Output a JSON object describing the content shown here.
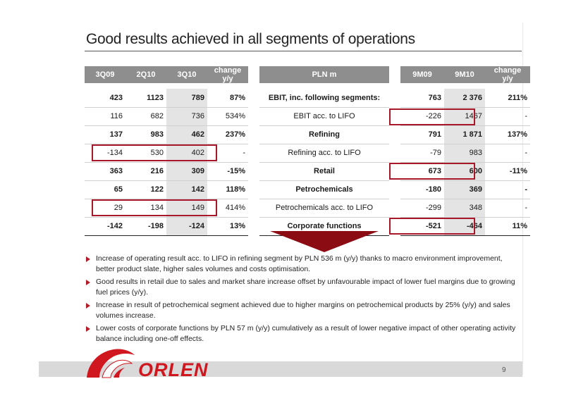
{
  "title": "Good results achieved in all segments of operations",
  "table": {
    "headers": {
      "left": [
        "3Q09",
        "2Q10",
        "3Q10",
        "change y/y"
      ],
      "middle": "PLN m",
      "right": [
        "9M09",
        "9M10",
        "change y/y"
      ]
    },
    "rows": [
      {
        "bold": true,
        "left": [
          "423",
          "1123",
          "789",
          "87%"
        ],
        "label": "EBIT, inc. following segments:",
        "right": [
          "763",
          "2 376",
          "211%"
        ]
      },
      {
        "bold": false,
        "left": [
          "116",
          "682",
          "736",
          "534%"
        ],
        "label": "EBIT acc. to LIFO",
        "right": [
          "-226",
          "1467",
          "-"
        ]
      },
      {
        "bold": true,
        "left": [
          "137",
          "983",
          "462",
          "237%"
        ],
        "label": "Refining",
        "right": [
          "791",
          "1 871",
          "137%"
        ]
      },
      {
        "bold": false,
        "left": [
          "-134",
          "530",
          "402",
          "-"
        ],
        "label": "Refining acc. to LIFO",
        "right": [
          "-79",
          "983",
          "-"
        ]
      },
      {
        "bold": true,
        "left": [
          "363",
          "216",
          "309",
          "-15%"
        ],
        "label": "Retail",
        "right": [
          "673",
          "600",
          "-11%"
        ]
      },
      {
        "bold": true,
        "left": [
          "65",
          "122",
          "142",
          "118%"
        ],
        "label": "Petrochemicals",
        "right": [
          "-180",
          "369",
          "-"
        ]
      },
      {
        "bold": false,
        "left": [
          "29",
          "134",
          "149",
          "414%"
        ],
        "label": "Petrochemicals acc. to LIFO",
        "right": [
          "-299",
          "348",
          "-"
        ]
      },
      {
        "bold": true,
        "left": [
          "-142",
          "-198",
          "-124",
          "13%"
        ],
        "label": "Corporate functions",
        "right": [
          "-521",
          "-464",
          "11%"
        ]
      }
    ]
  },
  "bullets": [
    "Increase of operating result acc. to LIFO in refining segment by PLN 536 m (y/y) thanks to macro environment improvement, better product slate, higher sales volumes and costs optimisation.",
    "Good results in retail due to sales and market share increase offset by unfavourable impact of lower fuel margins due to growing fuel prices (y/y).",
    "Increase in result of petrochemical segment achieved due to higher margins on petrochemical products by 25% (y/y) and sales volumes increase.",
    "Lower costs of corporate functions by PLN 57 m (y/y) cumulatively as a result of lower negative impact of other operating activity balance including one-off effects."
  ],
  "logo_text": "ORLEN",
  "page_number": "9",
  "colors": {
    "accent": "#a8182a",
    "header_gray": "#8e8e8e",
    "logo_red": "#d0161e"
  }
}
